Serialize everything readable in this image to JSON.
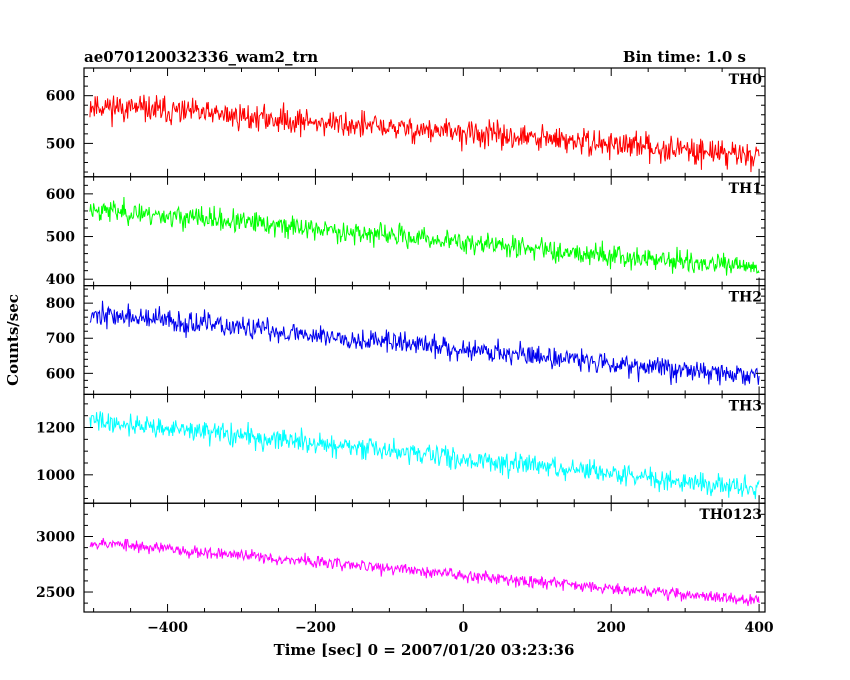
{
  "header": {
    "title": "ae070120032336_wam2_trn",
    "bin_time": "Bin time: 1.0 s"
  },
  "axes": {
    "xlabel": "Time [sec] 0 = 2007/01/20 03:23:36",
    "ylabel": "Counts/sec"
  },
  "chart_data": {
    "type": "line",
    "x_range": [
      -513,
      408
    ],
    "x_ticks": [
      -400,
      -200,
      0,
      200,
      400
    ],
    "x_tick_labels": [
      "−400",
      "−200",
      "0",
      "200",
      "400"
    ],
    "x_minor_step": 50,
    "x_start": -505,
    "x_end": 400,
    "x_step": 1,
    "panels": [
      {
        "name": "TH0",
        "color": "#ff0000",
        "ylim": [
          430,
          658
        ],
        "y_ticks": [
          500,
          600
        ],
        "y_minor_step": 20,
        "start": 580,
        "end": 475,
        "noise": 28,
        "seed": 11
      },
      {
        "name": "TH1",
        "color": "#00ff00",
        "ylim": [
          385,
          640
        ],
        "y_ticks": [
          400,
          500,
          600
        ],
        "y_minor_step": 20,
        "start": 565,
        "end": 425,
        "noise": 26,
        "seed": 23
      },
      {
        "name": "TH2",
        "color": "#0000ee",
        "ylim": [
          540,
          850
        ],
        "y_ticks": [
          600,
          700,
          800
        ],
        "y_minor_step": 20,
        "start": 770,
        "end": 590,
        "noise": 32,
        "seed": 37
      },
      {
        "name": "TH3",
        "color": "#00ffff",
        "ylim": [
          880,
          1340
        ],
        "y_ticks": [
          1000,
          1200
        ],
        "y_minor_step": 50,
        "start": 1230,
        "end": 940,
        "noise": 45,
        "seed": 41
      },
      {
        "name": "TH0123",
        "color": "#ff00ff",
        "ylim": [
          2320,
          3300
        ],
        "y_ticks": [
          2500,
          3000
        ],
        "y_minor_step": 100,
        "start": 2950,
        "end": 2420,
        "noise": 55,
        "seed": 53
      }
    ]
  }
}
